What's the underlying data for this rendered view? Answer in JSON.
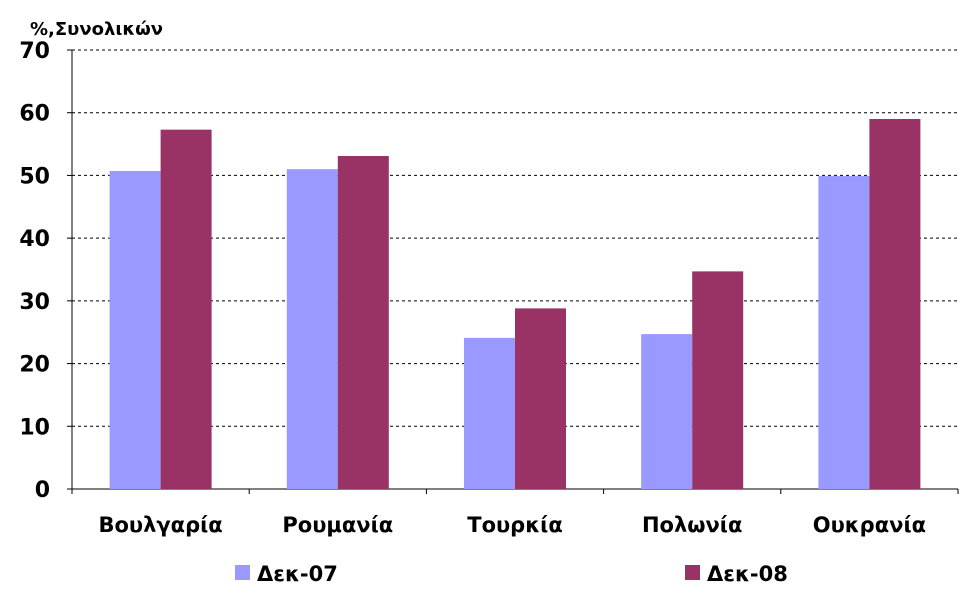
{
  "chart_data": {
    "type": "bar",
    "title": "",
    "xlabel": "",
    "ylabel": "%,Συνολικών",
    "ylim": [
      0,
      70
    ],
    "yticks": [
      0,
      10,
      20,
      30,
      40,
      50,
      60,
      70
    ],
    "grid": true,
    "legend_position": "bottom",
    "categories": [
      "Βουλγαρία",
      "Ρουμανία",
      "Τουρκία",
      "Πολωνία",
      "Ουκρανία"
    ],
    "series": [
      {
        "name": "Δεκ-07",
        "color": "#9999ff",
        "values": [
          50.7,
          51.0,
          24.1,
          24.7,
          49.9
        ]
      },
      {
        "name": "Δεκ-08",
        "color": "#993366",
        "values": [
          57.3,
          53.1,
          28.8,
          34.7,
          59.0
        ]
      }
    ]
  }
}
